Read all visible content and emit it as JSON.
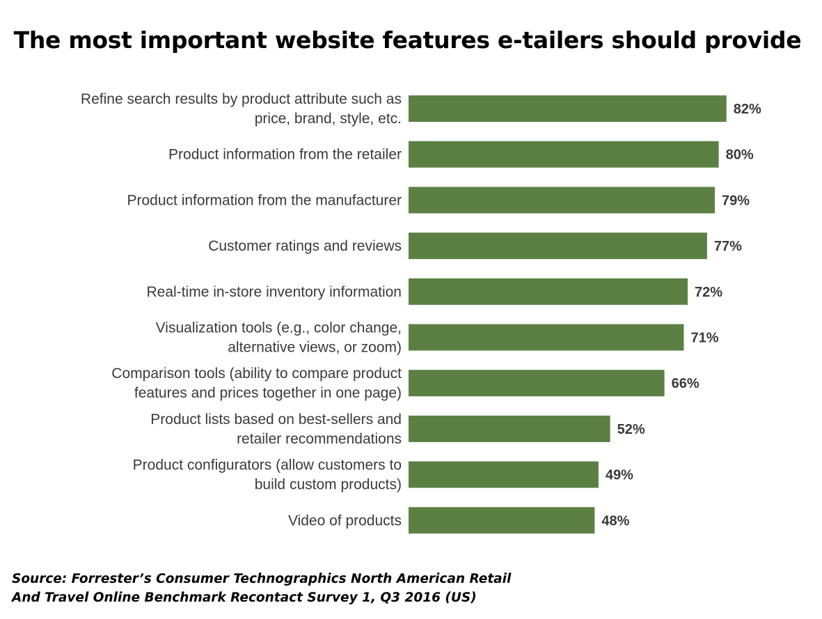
{
  "chart_data": {
    "type": "bar",
    "orientation": "horizontal",
    "title": "The most important website features e-tailers should provide",
    "categories": [
      [
        "Refine search results by product attribute such as",
        "price, brand, style, etc."
      ],
      [
        "Product information from the retailer"
      ],
      [
        "Product information from the manufacturer"
      ],
      [
        "Customer ratings and reviews"
      ],
      [
        "Real-time in-store inventory information"
      ],
      [
        "Visualization tools (e.g., color change,",
        "alternative views, or zoom)"
      ],
      [
        "Comparison tools (ability to compare product",
        "features and prices together in one page)"
      ],
      [
        "Product lists based on best-sellers and",
        "retailer recommendations"
      ],
      [
        "Product configurators (allow customers to",
        "build custom products)"
      ],
      [
        "Video of products"
      ]
    ],
    "values": [
      82,
      80,
      79,
      77,
      72,
      71,
      66,
      52,
      49,
      48
    ],
    "value_labels": [
      "82%",
      "80%",
      "79%",
      "77%",
      "72%",
      "71%",
      "66%",
      "52%",
      "49%",
      "48%"
    ],
    "xlim": [
      0,
      100
    ],
    "grid": false,
    "bar_color": "#5c8044"
  },
  "source": {
    "line1": "Source: Forrester’s Consumer Technographics North American Retail",
    "line2": "And Travel Online Benchmark Recontact Survey 1, Q3 2016 (US)"
  }
}
